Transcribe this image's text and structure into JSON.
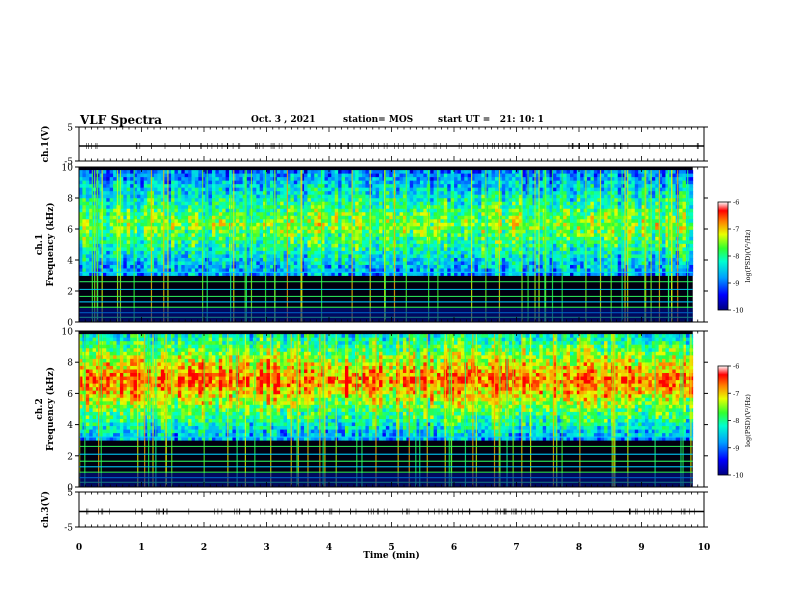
{
  "header": {
    "title": "VLF Spectra",
    "date": "Oct. 3 , 2021",
    "station": "station= MOS",
    "start": "start UT =   21: 10: 1"
  },
  "chart_data": [
    {
      "type": "line",
      "name": "ch1-waveform",
      "ylabel": "ch.1(V)",
      "ylim": [
        -5,
        5
      ],
      "yticks": [
        "5",
        "-5"
      ],
      "x": [
        0,
        10
      ],
      "values": [
        0,
        0
      ]
    },
    {
      "type": "heatmap",
      "name": "ch1-spectrogram",
      "ylabel": "ch.1\nFrequency (kHz)",
      "ylim": [
        0,
        10
      ],
      "yticks": [
        "0",
        "2",
        "4",
        "6",
        "8",
        "10"
      ],
      "xlim": [
        0,
        10
      ],
      "band_kHz": [
        3,
        9.8
      ],
      "colorbar": {
        "label": "log(PSD)(V²/Hz)",
        "ticks": [
          "-6",
          "-7",
          "-8",
          "-9",
          "-10"
        ],
        "range": [
          -10,
          -6
        ]
      }
    },
    {
      "type": "heatmap",
      "name": "ch2-spectrogram",
      "ylabel": "ch.2\nFrequency (kHz)",
      "ylim": [
        0,
        10
      ],
      "yticks": [
        "0",
        "2",
        "4",
        "6",
        "8",
        "10"
      ],
      "xlim": [
        0,
        10
      ],
      "band_kHz": [
        3,
        9.8
      ],
      "colorbar": {
        "label": "log(PSD)(V²/Hz)",
        "ticks": [
          "-6",
          "-7",
          "-8",
          "-9",
          "-10"
        ],
        "range": [
          -10,
          -6
        ]
      }
    },
    {
      "type": "line",
      "name": "ch3-waveform",
      "ylabel": "ch.3(V)",
      "ylim": [
        -5,
        5
      ],
      "yticks": [
        "5",
        "-5"
      ],
      "x": [
        0,
        10
      ],
      "values": [
        0,
        0
      ]
    }
  ],
  "xaxis": {
    "label": "Time (min)",
    "ticks": [
      "0",
      "1",
      "2",
      "3",
      "4",
      "5",
      "6",
      "7",
      "8",
      "9",
      "10"
    ]
  },
  "colors": {
    "axis": "#000000",
    "background": "#ffffff"
  }
}
